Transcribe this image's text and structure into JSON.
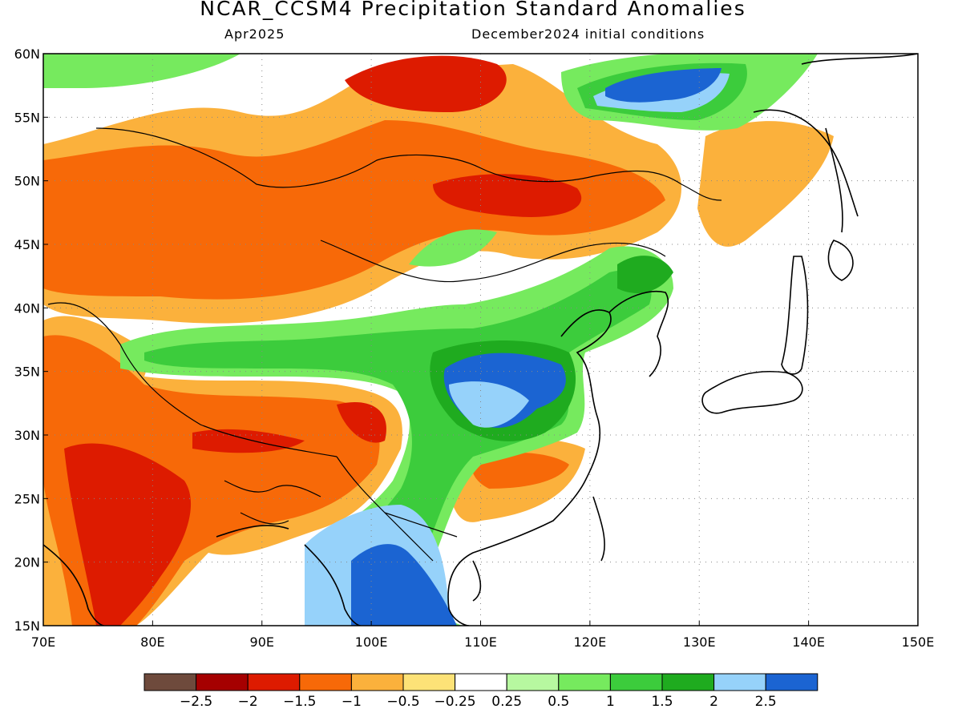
{
  "header": {
    "title": "NCAR_CCSM4 Precipitation Standard Anomalies",
    "valid_month": "Apr2025",
    "init": "December2024 initial conditions"
  },
  "map": {
    "lon_range": [
      70,
      150
    ],
    "lat_range": [
      15,
      60
    ],
    "lon_ticks": [
      {
        "value": 70,
        "label": "70E"
      },
      {
        "value": 80,
        "label": "80E"
      },
      {
        "value": 90,
        "label": "90E"
      },
      {
        "value": 100,
        "label": "100E"
      },
      {
        "value": 110,
        "label": "110E"
      },
      {
        "value": 120,
        "label": "120E"
      },
      {
        "value": 130,
        "label": "130E"
      },
      {
        "value": 140,
        "label": "140E"
      },
      {
        "value": 150,
        "label": "150E"
      }
    ],
    "lat_ticks": [
      {
        "value": 15,
        "label": "15N"
      },
      {
        "value": 20,
        "label": "20N"
      },
      {
        "value": 25,
        "label": "25N"
      },
      {
        "value": 30,
        "label": "30N"
      },
      {
        "value": 35,
        "label": "35N"
      },
      {
        "value": 40,
        "label": "40N"
      },
      {
        "value": 45,
        "label": "45N"
      },
      {
        "value": 50,
        "label": "50N"
      },
      {
        "value": 55,
        "label": "55N"
      },
      {
        "value": 60,
        "label": "60N"
      }
    ],
    "grid": "dotted"
  },
  "colorbar": {
    "colors": [
      "#6e4a3c",
      "#a50000",
      "#dd1b00",
      "#f76908",
      "#fbb13c",
      "#fde277",
      "#ffffff",
      "#b7f8a0",
      "#76ea5e",
      "#3ccc3c",
      "#1fab1f",
      "#96d2fa",
      "#1b64d2"
    ],
    "labels": [
      "−2.5",
      "−2",
      "−1.5",
      "−1",
      "−0.5",
      "−0.25",
      "0.25",
      "0.5",
      "1",
      "1.5",
      "2",
      "2.5"
    ]
  },
  "anomaly_fields": [
    {
      "lon": 110,
      "lat": 34.5,
      "rx": 3.2,
      "ry": 2.6,
      "level": 12
    },
    {
      "lon": 111,
      "lat": 33.5,
      "rx": 4.5,
      "ry": 4,
      "level": 11
    },
    {
      "lon": 101,
      "lat": 17,
      "rx": 3,
      "ry": 4,
      "level": 12
    },
    {
      "lon": 125,
      "lat": 57,
      "rx": 4,
      "ry": 2,
      "level": 12
    },
    {
      "lon": 104,
      "lat": 60,
      "rx": 4,
      "ry": 2,
      "level": 2
    },
    {
      "lon": 108,
      "lat": 48.5,
      "rx": 7,
      "ry": 2,
      "level": 2
    },
    {
      "lon": 78,
      "lat": 27,
      "rx": 5,
      "ry": 4,
      "level": 2
    },
    {
      "lon": 91,
      "lat": 29,
      "rx": 4,
      "ry": 1.5,
      "level": 2
    },
    {
      "lon": 101,
      "lat": 32,
      "rx": 2,
      "ry": 1.5,
      "level": 2
    }
  ]
}
